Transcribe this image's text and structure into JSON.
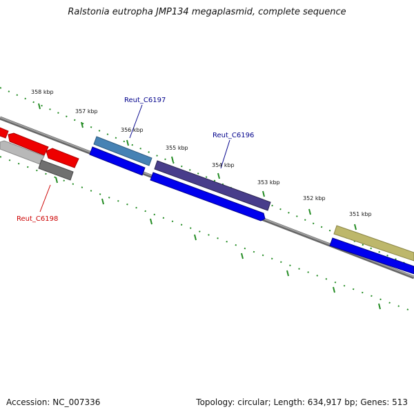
{
  "title": "Ralstonia eutropha JMP134 megaplasmid, complete sequence",
  "ticks": [
    "358 kbp",
    "357 kbp",
    "356 kbp",
    "355 kbp",
    "354 kbp",
    "353 kbp",
    "352 kbp",
    "351 kbp"
  ],
  "genes": [
    {
      "name": "Reut_C6197",
      "color": "#00008b"
    },
    {
      "name": "Reut_C6196",
      "color": "#00008b"
    },
    {
      "name": "Reut_C6198",
      "color": "#cc0000"
    }
  ],
  "footer": {
    "accession": "Accession: NC_007336",
    "summary": "Topology: circular; Length: 634,917 bp; Genes: 513"
  },
  "colors": {
    "backbone": "#808080",
    "tick": "#228b22",
    "cds_forward": "#0000ee",
    "cds_reverse_red": "#ee0000",
    "feature_gray": "#a0a0a0",
    "feature_steelblue": "#4682b4",
    "feature_slateblue": "#483d8b",
    "feature_khaki": "#bdb76b"
  }
}
